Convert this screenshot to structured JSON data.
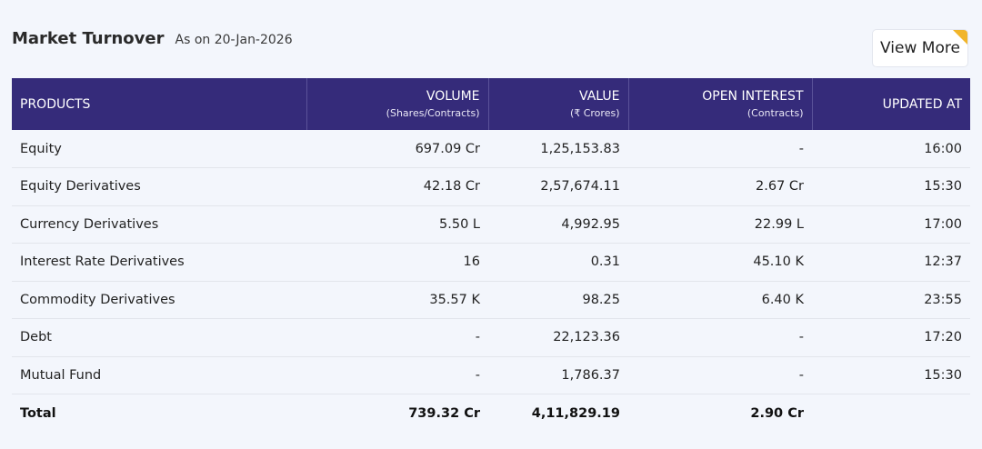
{
  "header": {
    "title": "Market Turnover",
    "subtitle": "As on 20-Jan-2026",
    "view_more_label": "View More"
  },
  "colors": {
    "header_bg": "#352b7a",
    "page_bg": "#f3f6fc",
    "accent_corner": "#f1b52a"
  },
  "table": {
    "columns": [
      {
        "label": "PRODUCTS",
        "sub": ""
      },
      {
        "label": "VOLUME",
        "sub": "(Shares/Contracts)"
      },
      {
        "label": "VALUE",
        "sub": "(₹ Crores)"
      },
      {
        "label": "OPEN INTEREST",
        "sub": "(Contracts)"
      },
      {
        "label": "UPDATED AT",
        "sub": ""
      }
    ],
    "rows": [
      {
        "product": "Equity",
        "volume": "697.09 Cr",
        "value": "1,25,153.83",
        "open_interest": "-",
        "updated_at": "16:00"
      },
      {
        "product": "Equity Derivatives",
        "volume": "42.18 Cr",
        "value": "2,57,674.11",
        "open_interest": "2.67 Cr",
        "updated_at": "15:30"
      },
      {
        "product": "Currency Derivatives",
        "volume": "5.50 L",
        "value": "4,992.95",
        "open_interest": "22.99 L",
        "updated_at": "17:00"
      },
      {
        "product": "Interest Rate Derivatives",
        "volume": "16",
        "value": "0.31",
        "open_interest": "45.10 K",
        "updated_at": "12:37"
      },
      {
        "product": "Commodity Derivatives",
        "volume": "35.57 K",
        "value": "98.25",
        "open_interest": "6.40 K",
        "updated_at": "23:55"
      },
      {
        "product": "Debt",
        "volume": "-",
        "value": "22,123.36",
        "open_interest": "-",
        "updated_at": "17:20"
      },
      {
        "product": "Mutual Fund",
        "volume": "-",
        "value": "1,786.37",
        "open_interest": "-",
        "updated_at": "15:30"
      }
    ],
    "total": {
      "label": "Total",
      "volume": "739.32 Cr",
      "value": "4,11,829.19",
      "open_interest": "2.90 Cr",
      "updated_at": ""
    }
  }
}
